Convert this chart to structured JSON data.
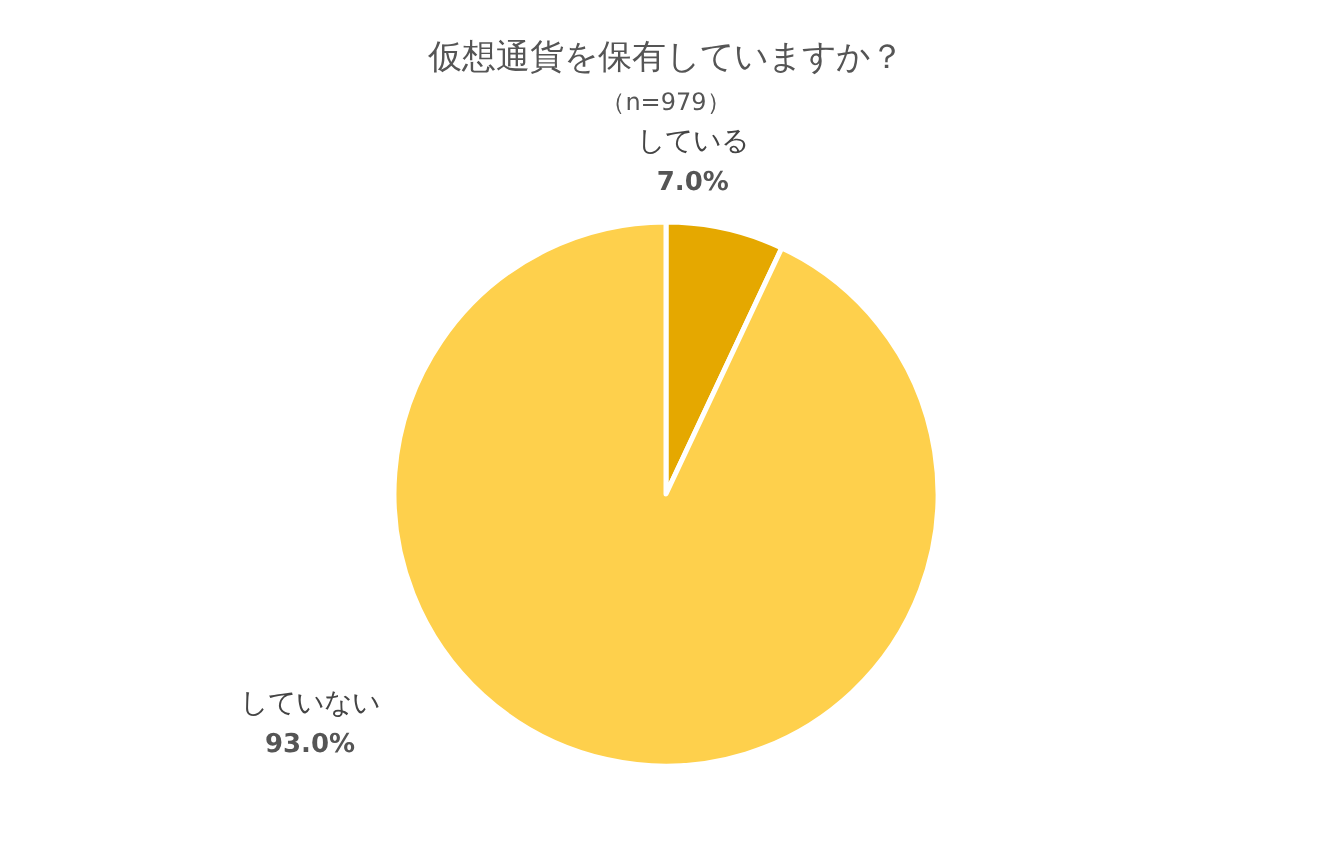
{
  "chart_data": {
    "type": "pie",
    "title": "仮想通貨を保有していますか？",
    "subtitle": "（n=979）",
    "categories": [
      "している",
      "していない"
    ],
    "values": [
      7.0,
      93.0
    ],
    "value_labels": [
      "7.0%",
      "93.0%"
    ],
    "colors": [
      "#e5a800",
      "#fed04c"
    ]
  }
}
